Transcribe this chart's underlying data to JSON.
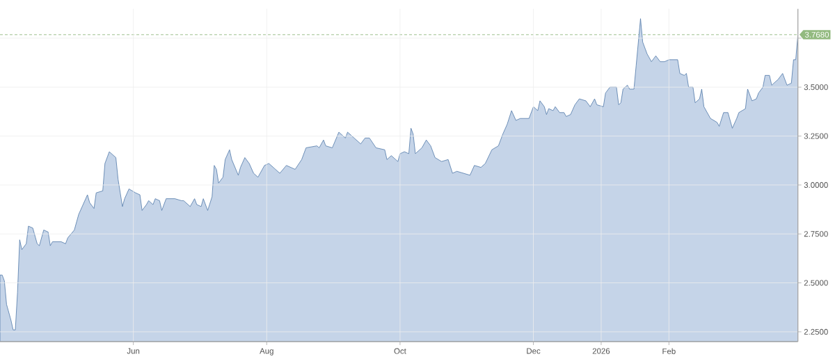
{
  "chart_data": {
    "type": "area",
    "color": "#c5d4e8",
    "x": [
      "2025-04-01",
      "2025-04-02",
      "2025-04-03",
      "2025-04-04",
      "2025-04-06",
      "2025-04-07",
      "2025-04-08",
      "2025-04-09",
      "2025-04-10",
      "2025-04-11",
      "2025-04-13",
      "2025-04-14",
      "2025-04-16",
      "2025-04-18",
      "2025-04-19",
      "2025-04-21",
      "2025-04-23",
      "2025-04-24",
      "2025-04-25",
      "2025-04-29",
      "2025-05-01",
      "2025-05-02",
      "2025-05-05",
      "2025-05-07",
      "2025-05-09",
      "2025-05-11",
      "2025-05-12",
      "2025-05-14",
      "2025-05-15",
      "2025-05-18",
      "2025-05-19",
      "2025-05-21",
      "2025-05-24",
      "2025-05-25",
      "2025-05-27",
      "2025-05-28",
      "2025-05-30",
      "2025-06-02",
      "2025-06-04",
      "2025-06-05",
      "2025-06-07",
      "2025-06-08",
      "2025-06-10",
      "2025-06-11",
      "2025-06-13",
      "2025-06-14",
      "2025-06-16",
      "2025-06-20",
      "2025-06-23",
      "2025-06-24",
      "2025-06-27",
      "2025-06-29",
      "2025-06-30",
      "2025-07-02",
      "2025-07-03",
      "2025-07-05",
      "2025-07-07",
      "2025-07-08",
      "2025-07-09",
      "2025-07-10",
      "2025-07-12",
      "2025-07-13",
      "2025-07-15",
      "2025-07-16",
      "2025-07-19",
      "2025-07-20",
      "2025-07-22",
      "2025-07-24",
      "2025-07-26",
      "2025-07-28",
      "2025-07-31",
      "2025-08-02",
      "2025-08-07",
      "2025-08-10",
      "2025-08-14",
      "2025-08-17",
      "2025-08-19",
      "2025-08-24",
      "2025-08-25",
      "2025-08-27",
      "2025-08-28",
      "2025-08-31",
      "2025-09-03",
      "2025-09-06",
      "2025-09-07",
      "2025-09-10",
      "2025-09-13",
      "2025-09-15",
      "2025-09-17",
      "2025-09-20",
      "2025-09-24",
      "2025-09-25",
      "2025-09-27",
      "2025-09-30",
      "2025-10-01",
      "2025-10-03",
      "2025-10-05",
      "2025-10-06",
      "2025-10-07",
      "2025-10-08",
      "2025-10-11",
      "2025-10-13",
      "2025-10-15",
      "2025-10-17",
      "2025-10-20",
      "2025-10-23",
      "2025-10-25",
      "2025-10-27",
      "2025-10-30",
      "2025-11-02",
      "2025-11-04",
      "2025-11-07",
      "2025-11-09",
      "2025-11-12",
      "2025-11-15",
      "2025-11-17",
      "2025-11-19",
      "2025-11-21",
      "2025-11-23",
      "2025-11-25",
      "2025-11-29",
      "2025-12-01",
      "2025-12-03",
      "2025-12-04",
      "2025-12-06",
      "2025-12-07",
      "2025-12-08",
      "2025-12-10",
      "2025-12-11",
      "2025-12-13",
      "2025-12-15",
      "2025-12-16",
      "2025-12-18",
      "2025-12-20",
      "2025-12-22",
      "2025-12-25",
      "2025-12-27",
      "2025-12-29",
      "2025-12-30",
      "2026-01-02",
      "2026-01-03",
      "2026-01-05",
      "2026-01-08",
      "2026-01-09",
      "2026-01-10",
      "2026-01-11",
      "2026-01-13",
      "2026-01-14",
      "2026-01-16",
      "2026-01-17",
      "2026-01-19",
      "2026-01-20",
      "2026-01-22",
      "2026-01-24",
      "2026-01-26",
      "2026-01-28",
      "2026-01-30",
      "2026-02-01",
      "2026-02-05",
      "2026-02-06",
      "2026-02-08",
      "2026-02-09",
      "2026-02-10",
      "2026-02-12",
      "2026-02-13",
      "2026-02-15",
      "2026-02-16",
      "2026-02-17",
      "2026-02-20",
      "2026-02-23",
      "2026-02-24",
      "2026-02-26",
      "2026-02-28",
      "2026-03-01",
      "2026-03-02",
      "2026-03-04",
      "2026-03-05",
      "2026-03-08",
      "2026-03-09",
      "2026-03-11",
      "2026-03-13",
      "2026-03-14",
      "2026-03-16",
      "2026-03-17",
      "2026-03-19",
      "2026-03-20",
      "2026-03-22",
      "2026-03-23",
      "2026-03-25",
      "2026-03-26",
      "2026-03-27",
      "2026-03-29",
      "2026-03-30",
      "2026-03-31",
      "2026-04-01"
    ],
    "values": [
      2.54,
      2.54,
      2.51,
      2.39,
      2.31,
      2.26,
      2.26,
      2.45,
      2.72,
      2.67,
      2.7,
      2.79,
      2.78,
      2.7,
      2.69,
      2.77,
      2.76,
      2.69,
      2.71,
      2.71,
      2.7,
      2.73,
      2.77,
      2.85,
      2.9,
      2.95,
      2.91,
      2.88,
      2.96,
      2.97,
      3.11,
      3.17,
      3.14,
      3.03,
      2.89,
      2.93,
      2.98,
      2.96,
      2.95,
      2.87,
      2.9,
      2.92,
      2.9,
      2.93,
      2.92,
      2.87,
      2.93,
      2.93,
      2.92,
      2.92,
      2.89,
      2.93,
      2.9,
      2.89,
      2.93,
      2.87,
      2.94,
      3.1,
      3.08,
      3.01,
      3.04,
      3.13,
      3.18,
      3.13,
      3.05,
      3.09,
      3.14,
      3.11,
      3.06,
      3.04,
      3.1,
      3.11,
      3.06,
      3.1,
      3.08,
      3.13,
      3.19,
      3.2,
      3.19,
      3.23,
      3.2,
      3.19,
      3.27,
      3.24,
      3.27,
      3.24,
      3.21,
      3.24,
      3.24,
      3.19,
      3.18,
      3.13,
      3.15,
      3.12,
      3.16,
      3.17,
      3.16,
      3.29,
      3.26,
      3.16,
      3.19,
      3.23,
      3.2,
      3.14,
      3.12,
      3.13,
      3.06,
      3.07,
      3.06,
      3.05,
      3.1,
      3.09,
      3.11,
      3.18,
      3.2,
      3.26,
      3.31,
      3.38,
      3.33,
      3.34,
      3.34,
      3.4,
      3.38,
      3.43,
      3.4,
      3.36,
      3.39,
      3.38,
      3.4,
      3.37,
      3.37,
      3.35,
      3.36,
      3.41,
      3.44,
      3.43,
      3.4,
      3.44,
      3.41,
      3.4,
      3.47,
      3.5,
      3.5,
      3.41,
      3.42,
      3.49,
      3.51,
      3.49,
      3.49,
      3.61,
      3.85,
      3.73,
      3.67,
      3.63,
      3.66,
      3.63,
      3.63,
      3.64,
      3.64,
      3.57,
      3.56,
      3.57,
      3.5,
      3.5,
      3.42,
      3.44,
      3.49,
      3.4,
      3.34,
      3.32,
      3.3,
      3.37,
      3.37,
      3.33,
      3.29,
      3.34,
      3.37,
      3.39,
      3.49,
      3.43,
      3.44,
      3.47,
      3.5,
      3.56,
      3.56,
      3.51,
      3.53,
      3.54,
      3.57,
      3.54,
      3.51,
      3.52,
      3.64,
      3.64,
      3.768
    ],
    "xlim": [
      "2025-04-01",
      "2026-04-01"
    ],
    "xticks": [
      {
        "value": "2025-06-01",
        "label": "Jun"
      },
      {
        "value": "2025-08-01",
        "label": "Aug"
      },
      {
        "value": "2025-10-01",
        "label": "Oct"
      },
      {
        "value": "2025-12-01",
        "label": "Dec"
      },
      {
        "value": "2026-01-01",
        "label": "2026"
      },
      {
        "value": "2026-02-01",
        "label": "Feb"
      }
    ],
    "ylim": [
      2.2,
      3.9
    ],
    "yticks": [
      {
        "value": 2.25,
        "label": "2.2500"
      },
      {
        "value": 2.5,
        "label": "2.5000"
      },
      {
        "value": 2.75,
        "label": "2.7500"
      },
      {
        "value": 3.0,
        "label": "3.0000"
      },
      {
        "value": 3.25,
        "label": "3.2500"
      },
      {
        "value": 3.5,
        "label": "3.5000"
      },
      {
        "value": 3.75,
        "label": null
      }
    ],
    "grid": true,
    "ref_lines": [
      {
        "axis": "y",
        "value": 3.768,
        "label": "3.7680",
        "color": "#93ba80",
        "line_style": "dashed"
      }
    ]
  }
}
